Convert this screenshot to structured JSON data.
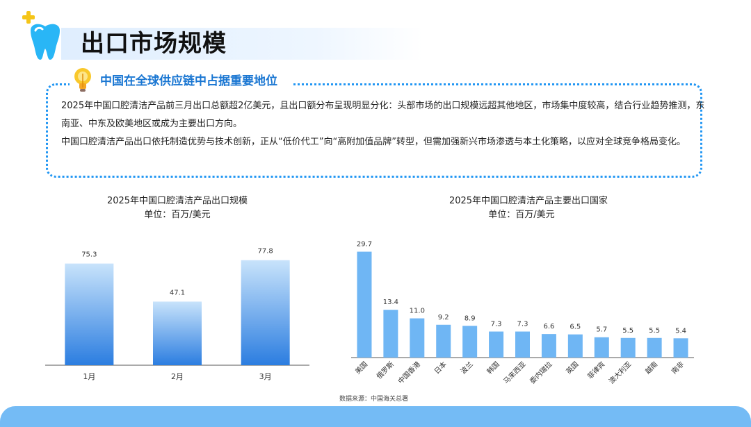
{
  "header": {
    "title": "出口市场规模"
  },
  "highlight": {
    "heading": "中国在全球供应链中占据重要地位",
    "paragraph1": "2025年中国口腔清洁产品前三月出口总额超2亿美元，且出口额分布呈现明显分化：头部市场的出口规模远超其他地区，市场集中度较高，结合行业趋势推测，东南亚、中东及欧美地区或成为主要出口方向。",
    "paragraph2": "中国口腔清洁产品出口依托制造优势与技术创新，正从“低价代工”向“高附加值品牌”转型，但需加强新兴市场渗透与本土化策略，以应对全球竞争格局变化。"
  },
  "chart_data": [
    {
      "type": "bar",
      "title": "2025年中国口腔清洁产品出口规模",
      "subtitle": "单位：百万/美元",
      "categories": [
        "1月",
        "2月",
        "3月"
      ],
      "values": [
        75.3,
        47.1,
        77.8
      ],
      "value_labels": [
        "75.3",
        "47.1",
        "77.8"
      ],
      "ylim": [
        0,
        90
      ],
      "grid": false,
      "colors": {
        "top": "#c8e3fb",
        "bottom": "#2b7de0"
      }
    },
    {
      "type": "bar",
      "title": "2025年中国口腔清洁产品主要出口国家",
      "subtitle": "单位：百万/美元",
      "categories": [
        "美国",
        "俄罗斯",
        "中国香港",
        "日本",
        "波兰",
        "韩国",
        "马来西亚",
        "委内瑞拉",
        "英国",
        "菲律宾",
        "澳大利亚",
        "越南",
        "南非"
      ],
      "values": [
        29.7,
        13.4,
        11.0,
        9.2,
        8.9,
        7.3,
        7.3,
        6.6,
        6.5,
        5.7,
        5.5,
        5.5,
        5.4
      ],
      "value_labels": [
        "29.7",
        "13.4",
        "11.0",
        "9.2",
        "8.9",
        "7.3",
        "7.3",
        "6.6",
        "6.5",
        "5.7",
        "5.5",
        "5.5",
        "5.4"
      ],
      "ylim": [
        0,
        30
      ],
      "grid": false,
      "colors": {
        "bar": "#6fb6f4"
      }
    }
  ],
  "footer": {
    "source": "数据来源：中国海关总署"
  },
  "theme": {
    "accent": "#2196f3",
    "accent_dark": "#1976d2",
    "footer": "#74bbf5",
    "plus": "#f5c518"
  },
  "icons": {
    "tooth": "tooth-icon",
    "bulb": "lightbulb-icon",
    "plus": "plus-icon"
  }
}
